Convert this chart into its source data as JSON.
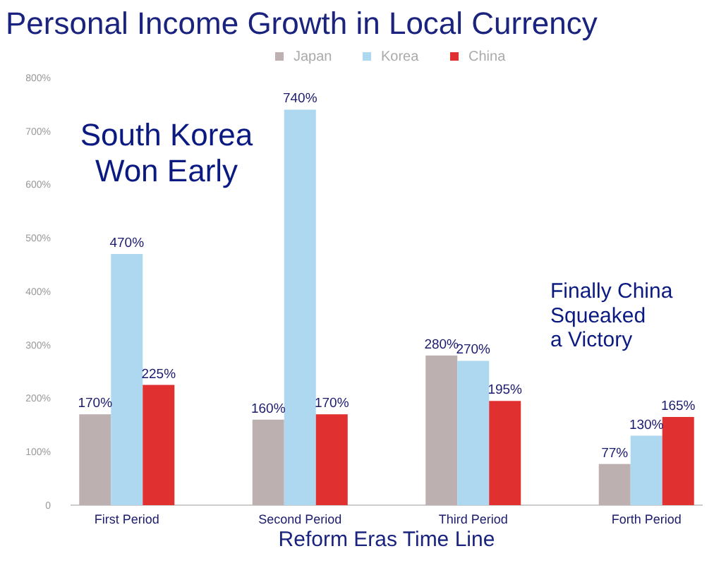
{
  "chart_data": {
    "type": "bar",
    "title": "Personal Income Growth in Local Currency",
    "xlabel": "Reform Eras Time Line",
    "categories": [
      "First Period",
      "Second Period",
      "Third Period",
      "Forth Period"
    ],
    "series": [
      {
        "name": "Japan",
        "color": "#bcb0b0",
        "values": [
          170,
          160,
          280,
          77
        ]
      },
      {
        "name": "Korea",
        "color": "#aed8f0",
        "values": [
          470,
          740,
          270,
          130
        ]
      },
      {
        "name": "China",
        "color": "#e03030",
        "values": [
          225,
          170,
          195,
          165
        ]
      }
    ],
    "ylim": [
      0,
      800
    ],
    "yticks": [
      {
        "value": 0,
        "label": "0"
      },
      {
        "value": 100,
        "label": "100%"
      },
      {
        "value": 200,
        "label": "200%"
      },
      {
        "value": 300,
        "label": "300%"
      },
      {
        "value": 400,
        "label": "400%"
      },
      {
        "value": 500,
        "label": "500%"
      },
      {
        "value": 600,
        "label": "600%"
      },
      {
        "value": 700,
        "label": "700%"
      },
      {
        "value": 800,
        "label": "800%"
      }
    ],
    "value_labels": [
      [
        "170%",
        "160%",
        "280%",
        "77%"
      ],
      [
        "470%",
        "740%",
        "270%",
        "130%"
      ],
      [
        "225%",
        "170%",
        "195%",
        "165%"
      ]
    ],
    "legend": "top",
    "grid": false,
    "annotations": [
      "South Korea\nWon Early",
      "Finally China\nSqueaked\na Victory"
    ]
  }
}
